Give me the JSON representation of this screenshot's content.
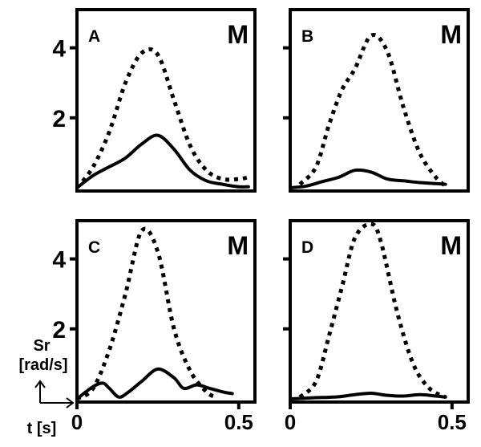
{
  "figure": {
    "ylabel_line1": "Sr",
    "ylabel_line2": "[rad/s]",
    "xlabel": "t [s]"
  },
  "chart_data": [
    {
      "type": "line",
      "panel_label": "A",
      "corner_label": "M",
      "xlim": [
        0,
        0.55
      ],
      "ylim": [
        0,
        5
      ],
      "yticks": [
        2,
        4
      ],
      "ytick_labels": [
        "2",
        "4"
      ],
      "xticks": [],
      "xtick_labels": [],
      "series": [
        {
          "style": "dotted",
          "x": [
            0,
            0.05,
            0.1,
            0.15,
            0.2,
            0.25,
            0.3,
            0.35,
            0.4,
            0.45,
            0.5,
            0.53
          ],
          "y": [
            0,
            0.6,
            1.6,
            3.0,
            3.85,
            3.8,
            2.5,
            1.2,
            0.5,
            0.25,
            0.25,
            0.3
          ]
        },
        {
          "style": "solid",
          "x": [
            0,
            0.05,
            0.1,
            0.15,
            0.2,
            0.25,
            0.3,
            0.35,
            0.4,
            0.45,
            0.5,
            0.53
          ],
          "y": [
            0,
            0.35,
            0.6,
            0.85,
            1.25,
            1.5,
            1.1,
            0.5,
            0.2,
            0.1,
            0.03,
            0.03
          ]
        }
      ]
    },
    {
      "type": "line",
      "panel_label": "B",
      "corner_label": "M",
      "xlim": [
        0,
        0.55
      ],
      "ylim": [
        0,
        5
      ],
      "yticks": [
        2,
        4
      ],
      "ytick_labels": [],
      "xticks": [],
      "xtick_labels": [],
      "series": [
        {
          "style": "dotted",
          "x": [
            0.03,
            0.08,
            0.12,
            0.16,
            0.2,
            0.25,
            0.3,
            0.35,
            0.4,
            0.45,
            0.48
          ],
          "y": [
            0.1,
            0.6,
            1.8,
            2.8,
            3.4,
            4.35,
            3.9,
            2.3,
            1.0,
            0.3,
            0.05
          ]
        },
        {
          "style": "solid",
          "x": [
            0,
            0.05,
            0.1,
            0.15,
            0.2,
            0.25,
            0.3,
            0.35,
            0.4,
            0.45,
            0.48
          ],
          "y": [
            0,
            0.05,
            0.18,
            0.3,
            0.5,
            0.45,
            0.25,
            0.2,
            0.15,
            0.12,
            0.1
          ]
        }
      ]
    },
    {
      "type": "line",
      "panel_label": "C",
      "corner_label": "M",
      "xlim": [
        0,
        0.55
      ],
      "ylim": [
        0,
        5
      ],
      "yticks": [
        2,
        4
      ],
      "ytick_labels": [
        "2",
        "4"
      ],
      "xticks": [
        0,
        0.5
      ],
      "xtick_labels": [
        "0",
        "0.5"
      ],
      "series": [
        {
          "style": "dotted",
          "x": [
            0,
            0.05,
            0.1,
            0.15,
            0.2,
            0.25,
            0.3,
            0.35,
            0.4,
            0.43
          ],
          "y": [
            0,
            0.3,
            1.4,
            3.0,
            4.8,
            4.2,
            2.0,
            0.8,
            0.2,
            0.05
          ]
        },
        {
          "style": "solid",
          "x": [
            0,
            0.05,
            0.08,
            0.1,
            0.13,
            0.16,
            0.2,
            0.25,
            0.3,
            0.33,
            0.37,
            0.41,
            0.45,
            0.48
          ],
          "y": [
            0,
            0.35,
            0.45,
            0.3,
            0.05,
            0.2,
            0.5,
            0.85,
            0.6,
            0.3,
            0.4,
            0.3,
            0.2,
            0.15
          ]
        }
      ]
    },
    {
      "type": "line",
      "panel_label": "D",
      "corner_label": "M",
      "xlim": [
        0,
        0.55
      ],
      "ylim": [
        0,
        5
      ],
      "yticks": [
        2,
        4
      ],
      "ytick_labels": [],
      "xticks": [
        0,
        0.5
      ],
      "xtick_labels": [
        "0",
        "0.5"
      ],
      "series": [
        {
          "style": "dotted",
          "x": [
            0.03,
            0.08,
            0.12,
            0.16,
            0.2,
            0.25,
            0.28,
            0.33,
            0.38,
            0.43,
            0.48
          ],
          "y": [
            0.05,
            0.5,
            1.8,
            3.2,
            4.6,
            5.0,
            4.5,
            2.5,
            1.0,
            0.3,
            0.05
          ]
        },
        {
          "style": "solid",
          "x": [
            0,
            0.05,
            0.1,
            0.15,
            0.2,
            0.25,
            0.3,
            0.35,
            0.4,
            0.45,
            0.48
          ],
          "y": [
            0,
            0.02,
            0.04,
            0.06,
            0.12,
            0.16,
            0.1,
            0.08,
            0.12,
            0.08,
            0.05
          ]
        }
      ]
    }
  ]
}
